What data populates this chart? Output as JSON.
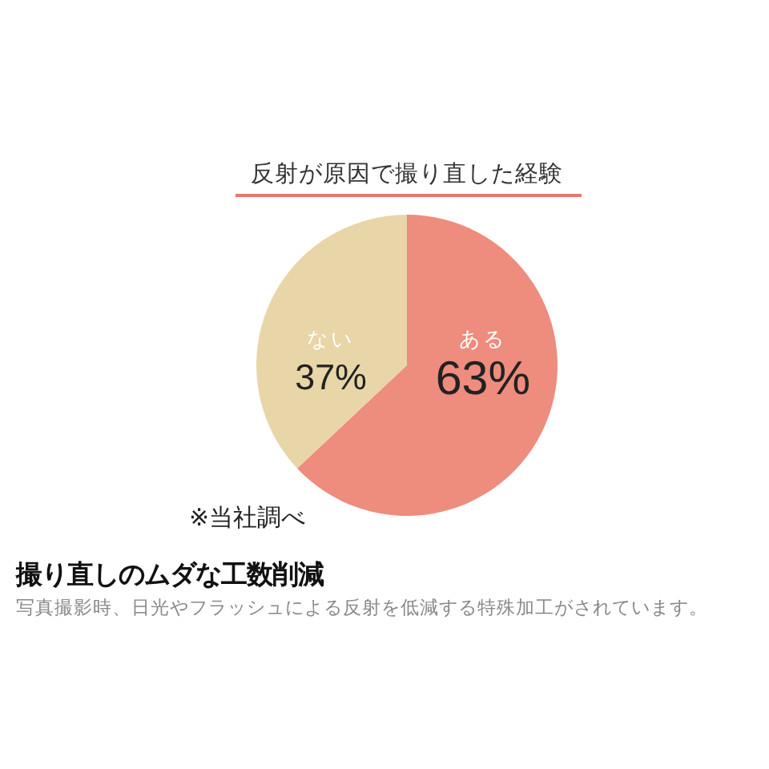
{
  "chart_data": {
    "type": "pie",
    "title": "反射が原因で撮り直した経験",
    "categories": [
      "ある",
      "ない"
    ],
    "values": [
      63,
      37
    ],
    "colors": [
      "#ee8c7e",
      "#e8d6a8"
    ],
    "value_labels": [
      "63%",
      "37%"
    ],
    "annotations": [
      "※当社調べ",
      "撮り直しのムダな工数削減",
      "写真撮影時、日光やフラッシュによる反射を低減する特殊加工がされています。"
    ]
  }
}
